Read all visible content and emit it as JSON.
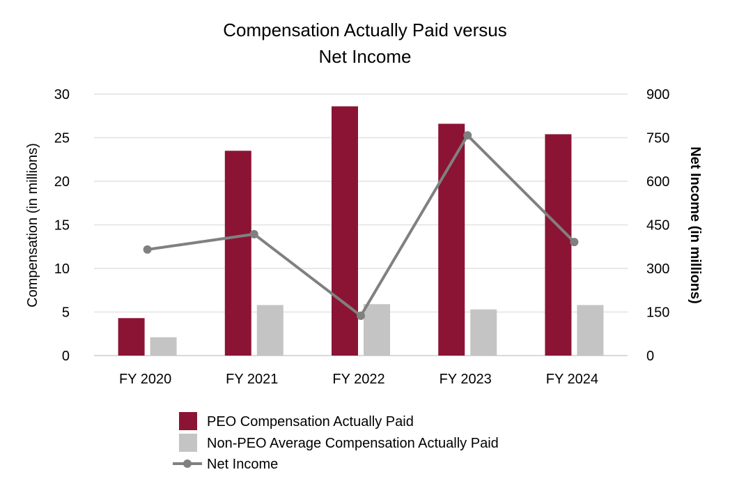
{
  "chart_data": {
    "type": "bar",
    "title": [
      "Compensation Actually Paid versus",
      "Net Income"
    ],
    "categories": [
      "FY 2020",
      "FY 2021",
      "FY 2022",
      "FY 2023",
      "FY 2024"
    ],
    "series": [
      {
        "name": "PEO Compensation Actually Paid",
        "type": "bar",
        "axis": "left",
        "color": "#8B1434",
        "values": [
          4.3,
          23.5,
          28.6,
          26.6,
          25.4
        ]
      },
      {
        "name": "Non-PEO Average Compensation Actually Paid",
        "type": "bar",
        "axis": "left",
        "color": "#C4C4C4",
        "values": [
          2.1,
          5.8,
          5.9,
          5.3,
          5.8
        ]
      },
      {
        "name": "Net Income",
        "type": "line",
        "axis": "right",
        "color": "#808080",
        "values": [
          365,
          418,
          137,
          758,
          391
        ]
      }
    ],
    "ylabel": "Compensation (in millions)",
    "y2label": "Net Income (in millions)",
    "ylim": [
      0,
      30
    ],
    "yticks": [
      "0",
      "5",
      "10",
      "15",
      "20",
      "25",
      "30"
    ],
    "y2lim": [
      0,
      900
    ],
    "y2ticks": [
      "0",
      "150",
      "300",
      "450",
      "600",
      "750",
      "900"
    ],
    "grid": true,
    "legend_position": "bottom"
  }
}
